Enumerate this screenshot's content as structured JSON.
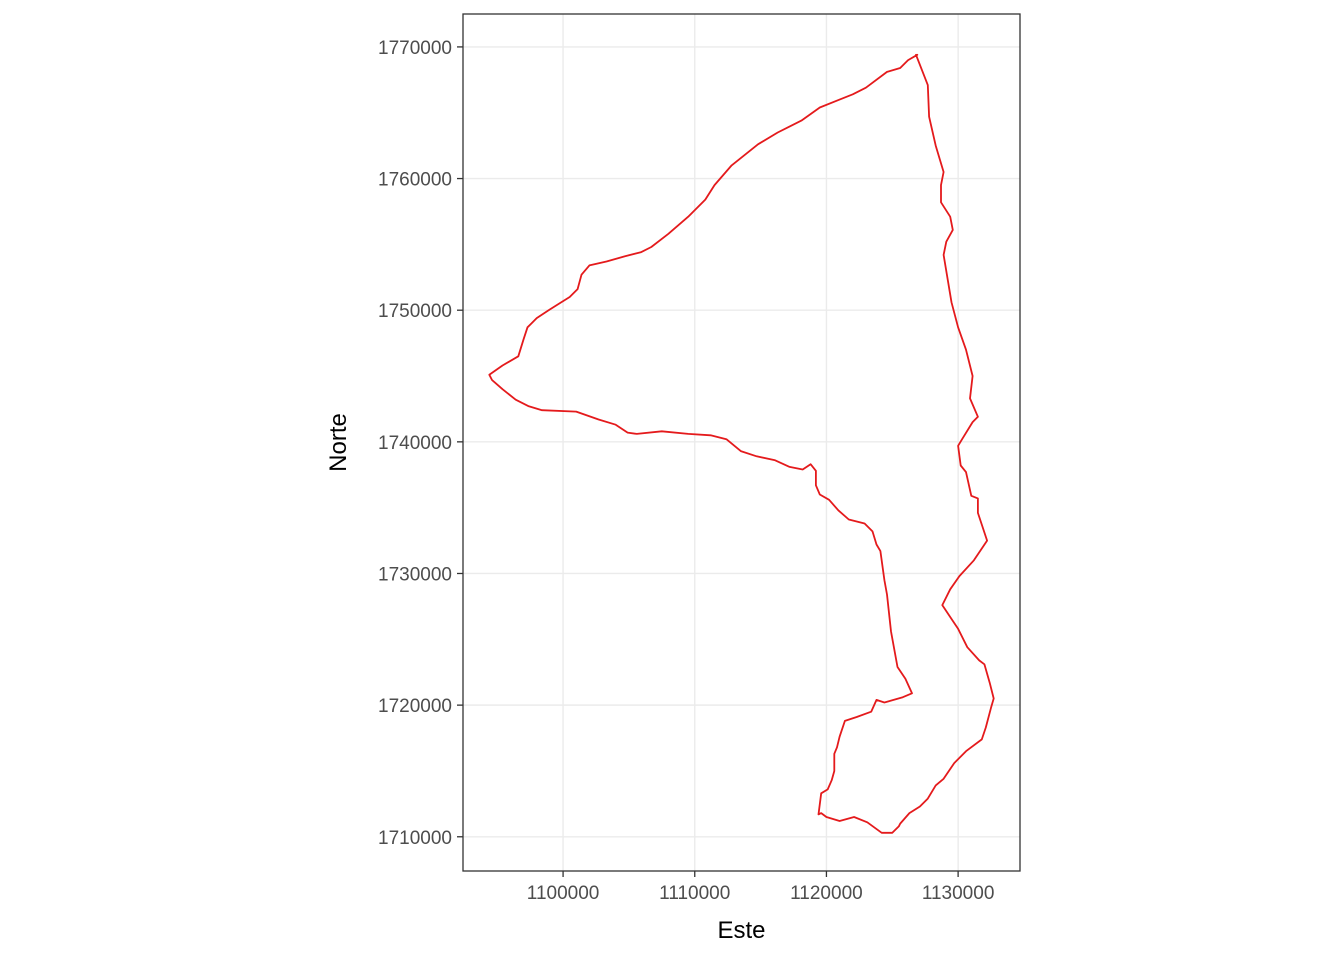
{
  "chart_data": {
    "type": "line",
    "xlabel": "Este",
    "ylabel": "Norte",
    "x_ticks": [
      1100000,
      1110000,
      1120000,
      1130000
    ],
    "x_tick_labels": [
      "1100000",
      "1110000",
      "1120000",
      "1130000"
    ],
    "y_ticks": [
      1710000,
      1720000,
      1730000,
      1740000,
      1750000,
      1760000,
      1770000
    ],
    "y_tick_labels": [
      "1710000",
      "1720000",
      "1730000",
      "1740000",
      "1750000",
      "1760000",
      "1770000"
    ],
    "xlim": [
      1092400,
      1134700
    ],
    "ylim": [
      1707400,
      1772500
    ],
    "grid": true,
    "series": [
      {
        "color": "#e41a1c",
        "x": [
          1126900,
          1126200,
          1125600,
          1124600,
          1123000,
          1122000,
          1121000,
          1119500,
          1118100,
          1116300,
          1114800,
          1112800,
          1111500,
          1110800,
          1109500,
          1108000,
          1106700,
          1105900,
          1104700,
          1103300,
          1102000,
          1101400,
          1101100,
          1100500,
          1099700,
          1098900,
          1098000,
          1097600,
          1097300,
          1097000,
          1096600,
          1095400,
          1094400,
          1094600,
          1095400,
          1096400,
          1097400,
          1098400,
          1101000,
          1102700,
          1104000,
          1104900,
          1105600,
          1107500,
          1109500,
          1111200,
          1112400,
          1113500,
          1114700,
          1116100,
          1117200,
          1118200,
          1118800,
          1119200,
          1119200,
          1119500,
          1120200,
          1120900,
          1121700,
          1122900,
          1123500,
          1123800,
          1124100,
          1124400,
          1124600,
          1124900,
          1125400,
          1126000,
          1126500,
          1125800,
          1124400,
          1123800,
          1123400,
          1122300,
          1121400,
          1121000,
          1120800,
          1120600,
          1120600,
          1120400,
          1120100,
          1119600,
          1119400,
          1119600,
          1120000,
          1121000,
          1122100,
          1123100,
          1124200,
          1125000,
          1125500,
          1125600,
          1126300,
          1127100,
          1127700,
          1128300,
          1128900,
          1129700,
          1130600,
          1131800,
          1132100,
          1132500,
          1132700,
          1132400,
          1132000,
          1131600,
          1130700,
          1130000,
          1129600,
          1128800,
          1129400,
          1130100,
          1131200,
          1132200,
          1131500,
          1131500,
          1131000,
          1130600,
          1130200,
          1130000,
          1130300,
          1131100,
          1131500,
          1130900,
          1131100,
          1130600,
          1130000,
          1129500,
          1128900,
          1129100,
          1129600,
          1129400,
          1128700,
          1128700,
          1128900,
          1128300,
          1127800,
          1127700,
          1126800
        ],
        "y": [
          1769400,
          1769000,
          1768400,
          1768100,
          1766900,
          1766400,
          1766000,
          1765400,
          1764400,
          1763500,
          1762600,
          1761000,
          1759500,
          1758400,
          1757100,
          1755800,
          1754800,
          1754400,
          1754100,
          1753700,
          1753400,
          1752700,
          1751600,
          1751000,
          1750500,
          1750000,
          1749400,
          1749000,
          1748700,
          1747800,
          1746500,
          1745800,
          1745100,
          1744700,
          1744000,
          1743200,
          1742700,
          1742400,
          1742300,
          1741700,
          1741300,
          1740700,
          1740600,
          1740800,
          1740600,
          1740500,
          1740200,
          1739300,
          1738900,
          1738600,
          1738100,
          1737900,
          1738300,
          1737800,
          1736700,
          1736000,
          1735600,
          1734800,
          1734100,
          1733800,
          1733200,
          1732200,
          1731700,
          1729500,
          1728400,
          1725600,
          1722900,
          1722000,
          1720900,
          1720600,
          1720200,
          1720400,
          1719500,
          1719100,
          1718800,
          1717600,
          1716800,
          1716300,
          1715000,
          1714300,
          1713600,
          1713300,
          1711700,
          1711800,
          1711500,
          1711200,
          1711500,
          1711100,
          1710300,
          1710300,
          1710800,
          1711000,
          1711800,
          1712300,
          1712900,
          1713900,
          1714400,
          1715600,
          1716500,
          1717400,
          1718300,
          1719800,
          1720500,
          1721700,
          1723100,
          1723400,
          1724400,
          1725800,
          1726400,
          1727600,
          1728800,
          1729800,
          1731000,
          1732500,
          1734600,
          1735700,
          1735900,
          1737700,
          1738200,
          1739700,
          1740200,
          1741500,
          1741900,
          1743300,
          1745000,
          1747000,
          1748700,
          1750600,
          1754200,
          1755200,
          1756100,
          1757100,
          1758200,
          1759500,
          1760500,
          1762500,
          1764700,
          1767100,
          1769400
        ]
      }
    ]
  }
}
